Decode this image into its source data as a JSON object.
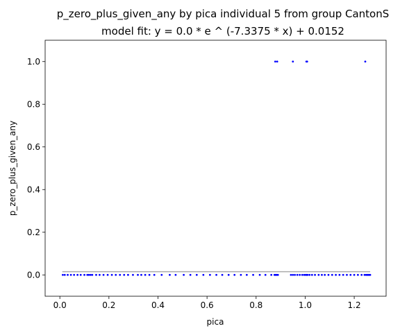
{
  "chart_data": {
    "type": "scatter",
    "title": "p_zero_plus_given_any by pica individual 5 from group CantonS",
    "subtitle": "model fit: y = 0.0 * e ^ (-7.3375 * x) + 0.0152",
    "xlabel": "pica",
    "ylabel": "p_zero_plus_given_any",
    "xlim": [
      -0.06,
      1.33
    ],
    "ylim": [
      -0.1,
      1.1
    ],
    "xticks": [
      0.0,
      0.2,
      0.4,
      0.6,
      0.8,
      1.0,
      1.2
    ],
    "xtick_labels": [
      "0.0",
      "0.2",
      "0.4",
      "0.6",
      "0.8",
      "1.0",
      "1.2"
    ],
    "yticks": [
      0.0,
      0.2,
      0.4,
      0.6,
      0.8,
      1.0
    ],
    "ytick_labels": [
      "0.0",
      "0.2",
      "0.4",
      "0.6",
      "0.8",
      "1.0"
    ],
    "grid": false,
    "colors": {
      "points": "#0000ff",
      "fit_line": "#aaaaaa"
    },
    "fit": {
      "model": "exponential",
      "a": 0.0,
      "b": -7.3375,
      "c": 0.0152,
      "x_range": [
        0.01,
        1.265
      ]
    },
    "points": {
      "x": [
        0.012,
        0.02,
        0.032,
        0.045,
        0.058,
        0.072,
        0.085,
        0.1,
        0.112,
        0.118,
        0.125,
        0.132,
        0.148,
        0.162,
        0.178,
        0.195,
        0.212,
        0.228,
        0.245,
        0.262,
        0.278,
        0.298,
        0.318,
        0.332,
        0.348,
        0.365,
        0.385,
        0.415,
        0.448,
        0.472,
        0.505,
        0.532,
        0.558,
        0.585,
        0.612,
        0.638,
        0.662,
        0.688,
        0.712,
        0.738,
        0.762,
        0.788,
        0.815,
        0.838,
        0.862,
        0.875,
        0.878,
        0.882,
        0.885,
        0.889,
        0.942,
        0.95,
        0.958,
        0.968,
        0.978,
        0.988,
        0.996,
        1.002,
        1.006,
        1.01,
        1.018,
        1.028,
        1.04,
        1.055,
        1.068,
        1.08,
        1.095,
        1.11,
        1.125,
        1.14,
        1.155,
        1.17,
        1.185,
        1.2,
        1.215,
        1.23,
        1.242,
        1.248,
        1.252,
        1.255,
        1.258,
        1.262,
        1.265,
        0.878,
        0.886,
        0.95,
        1.005,
        1.008,
        1.245
      ],
      "y": [
        0,
        0,
        0,
        0,
        0,
        0,
        0,
        0,
        0,
        0,
        0,
        0,
        0,
        0,
        0,
        0,
        0,
        0,
        0,
        0,
        0,
        0,
        0,
        0,
        0,
        0,
        0,
        0,
        0,
        0,
        0,
        0,
        0,
        0,
        0,
        0,
        0,
        0,
        0,
        0,
        0,
        0,
        0,
        0,
        0,
        0,
        0,
        0,
        0,
        0,
        0,
        0,
        0,
        0,
        0,
        0,
        0,
        0,
        0,
        0,
        0,
        0,
        0,
        0,
        0,
        0,
        0,
        0,
        0,
        0,
        0,
        0,
        0,
        0,
        0,
        0,
        0,
        0,
        0,
        0,
        0,
        0,
        0,
        1,
        1,
        1,
        1,
        1,
        1
      ]
    }
  }
}
